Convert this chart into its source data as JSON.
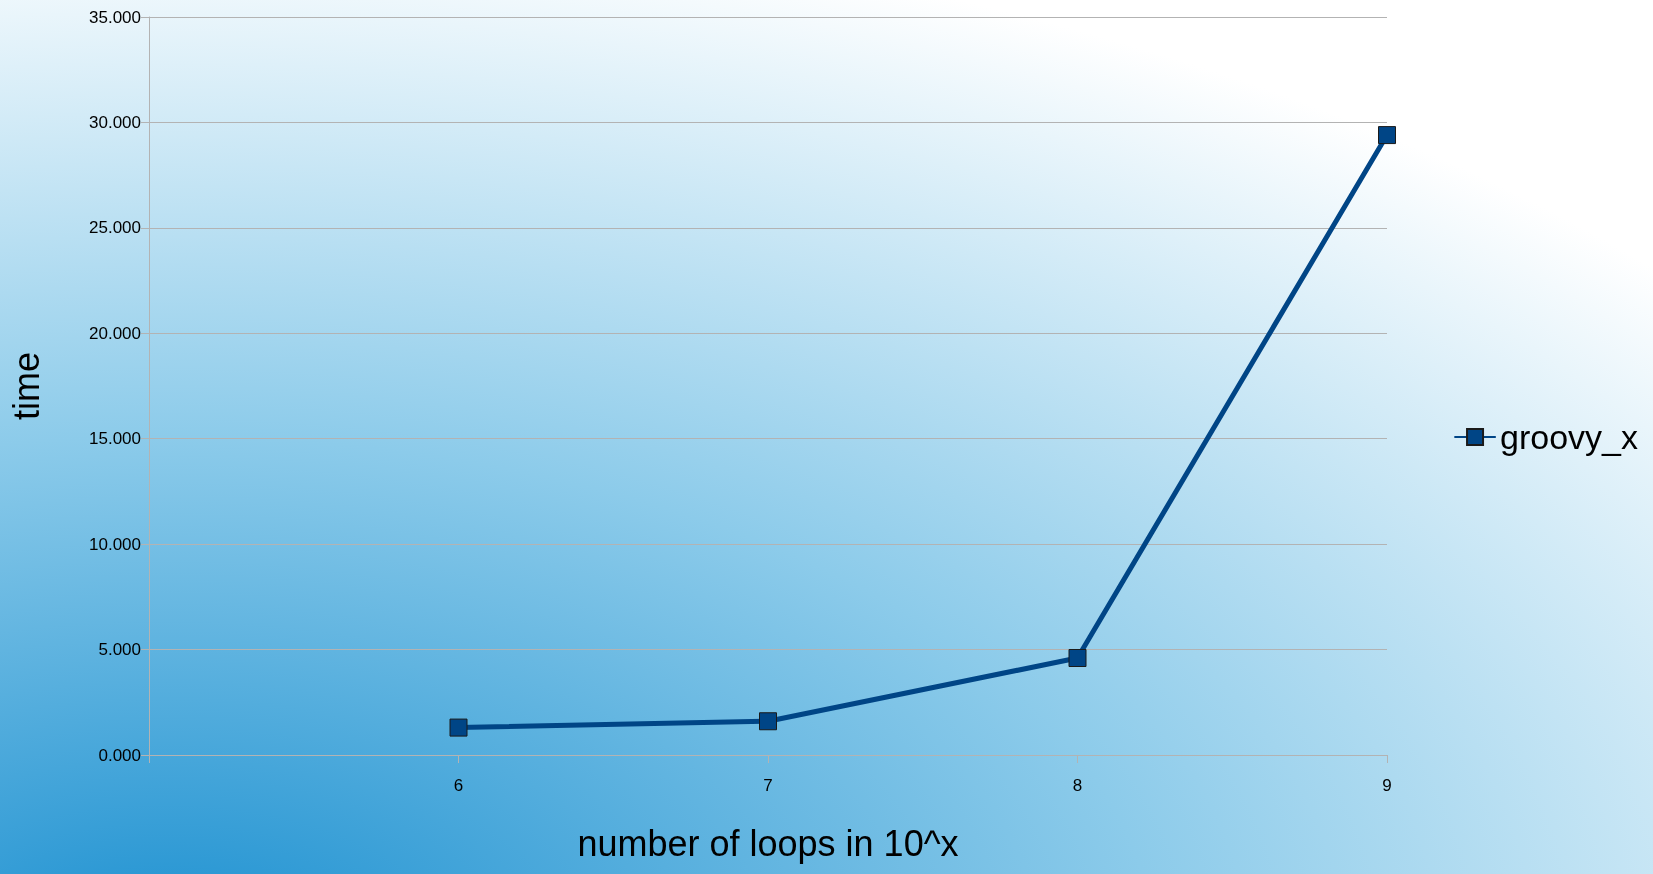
{
  "chart_data": {
    "type": "line",
    "xlabel": "number of loops in 10^x",
    "ylabel": "time",
    "x": [
      6,
      7,
      8,
      9
    ],
    "series": [
      {
        "name": "groovy_x",
        "color": "#004586",
        "values": [
          1.3,
          1.6,
          4.6,
          29.4
        ]
      }
    ],
    "xlim": [
      5,
      9
    ],
    "xticks": [
      {
        "value": 5,
        "label": null
      },
      6,
      7,
      8,
      9
    ],
    "ylim": [
      0,
      35
    ],
    "yticks": [
      {
        "value": 0,
        "label": "0.000"
      },
      {
        "value": 5,
        "label": "5.000"
      },
      {
        "value": 10,
        "label": "10.000"
      },
      {
        "value": 15,
        "label": "15.000"
      },
      {
        "value": 20,
        "label": "20.000"
      },
      {
        "value": 25,
        "label": "25.000"
      },
      {
        "value": 30,
        "label": "30.000"
      },
      {
        "value": 35,
        "label": "35.000"
      }
    ],
    "grid": "y",
    "legend": "right",
    "marker": "square",
    "line_style": "solid"
  }
}
